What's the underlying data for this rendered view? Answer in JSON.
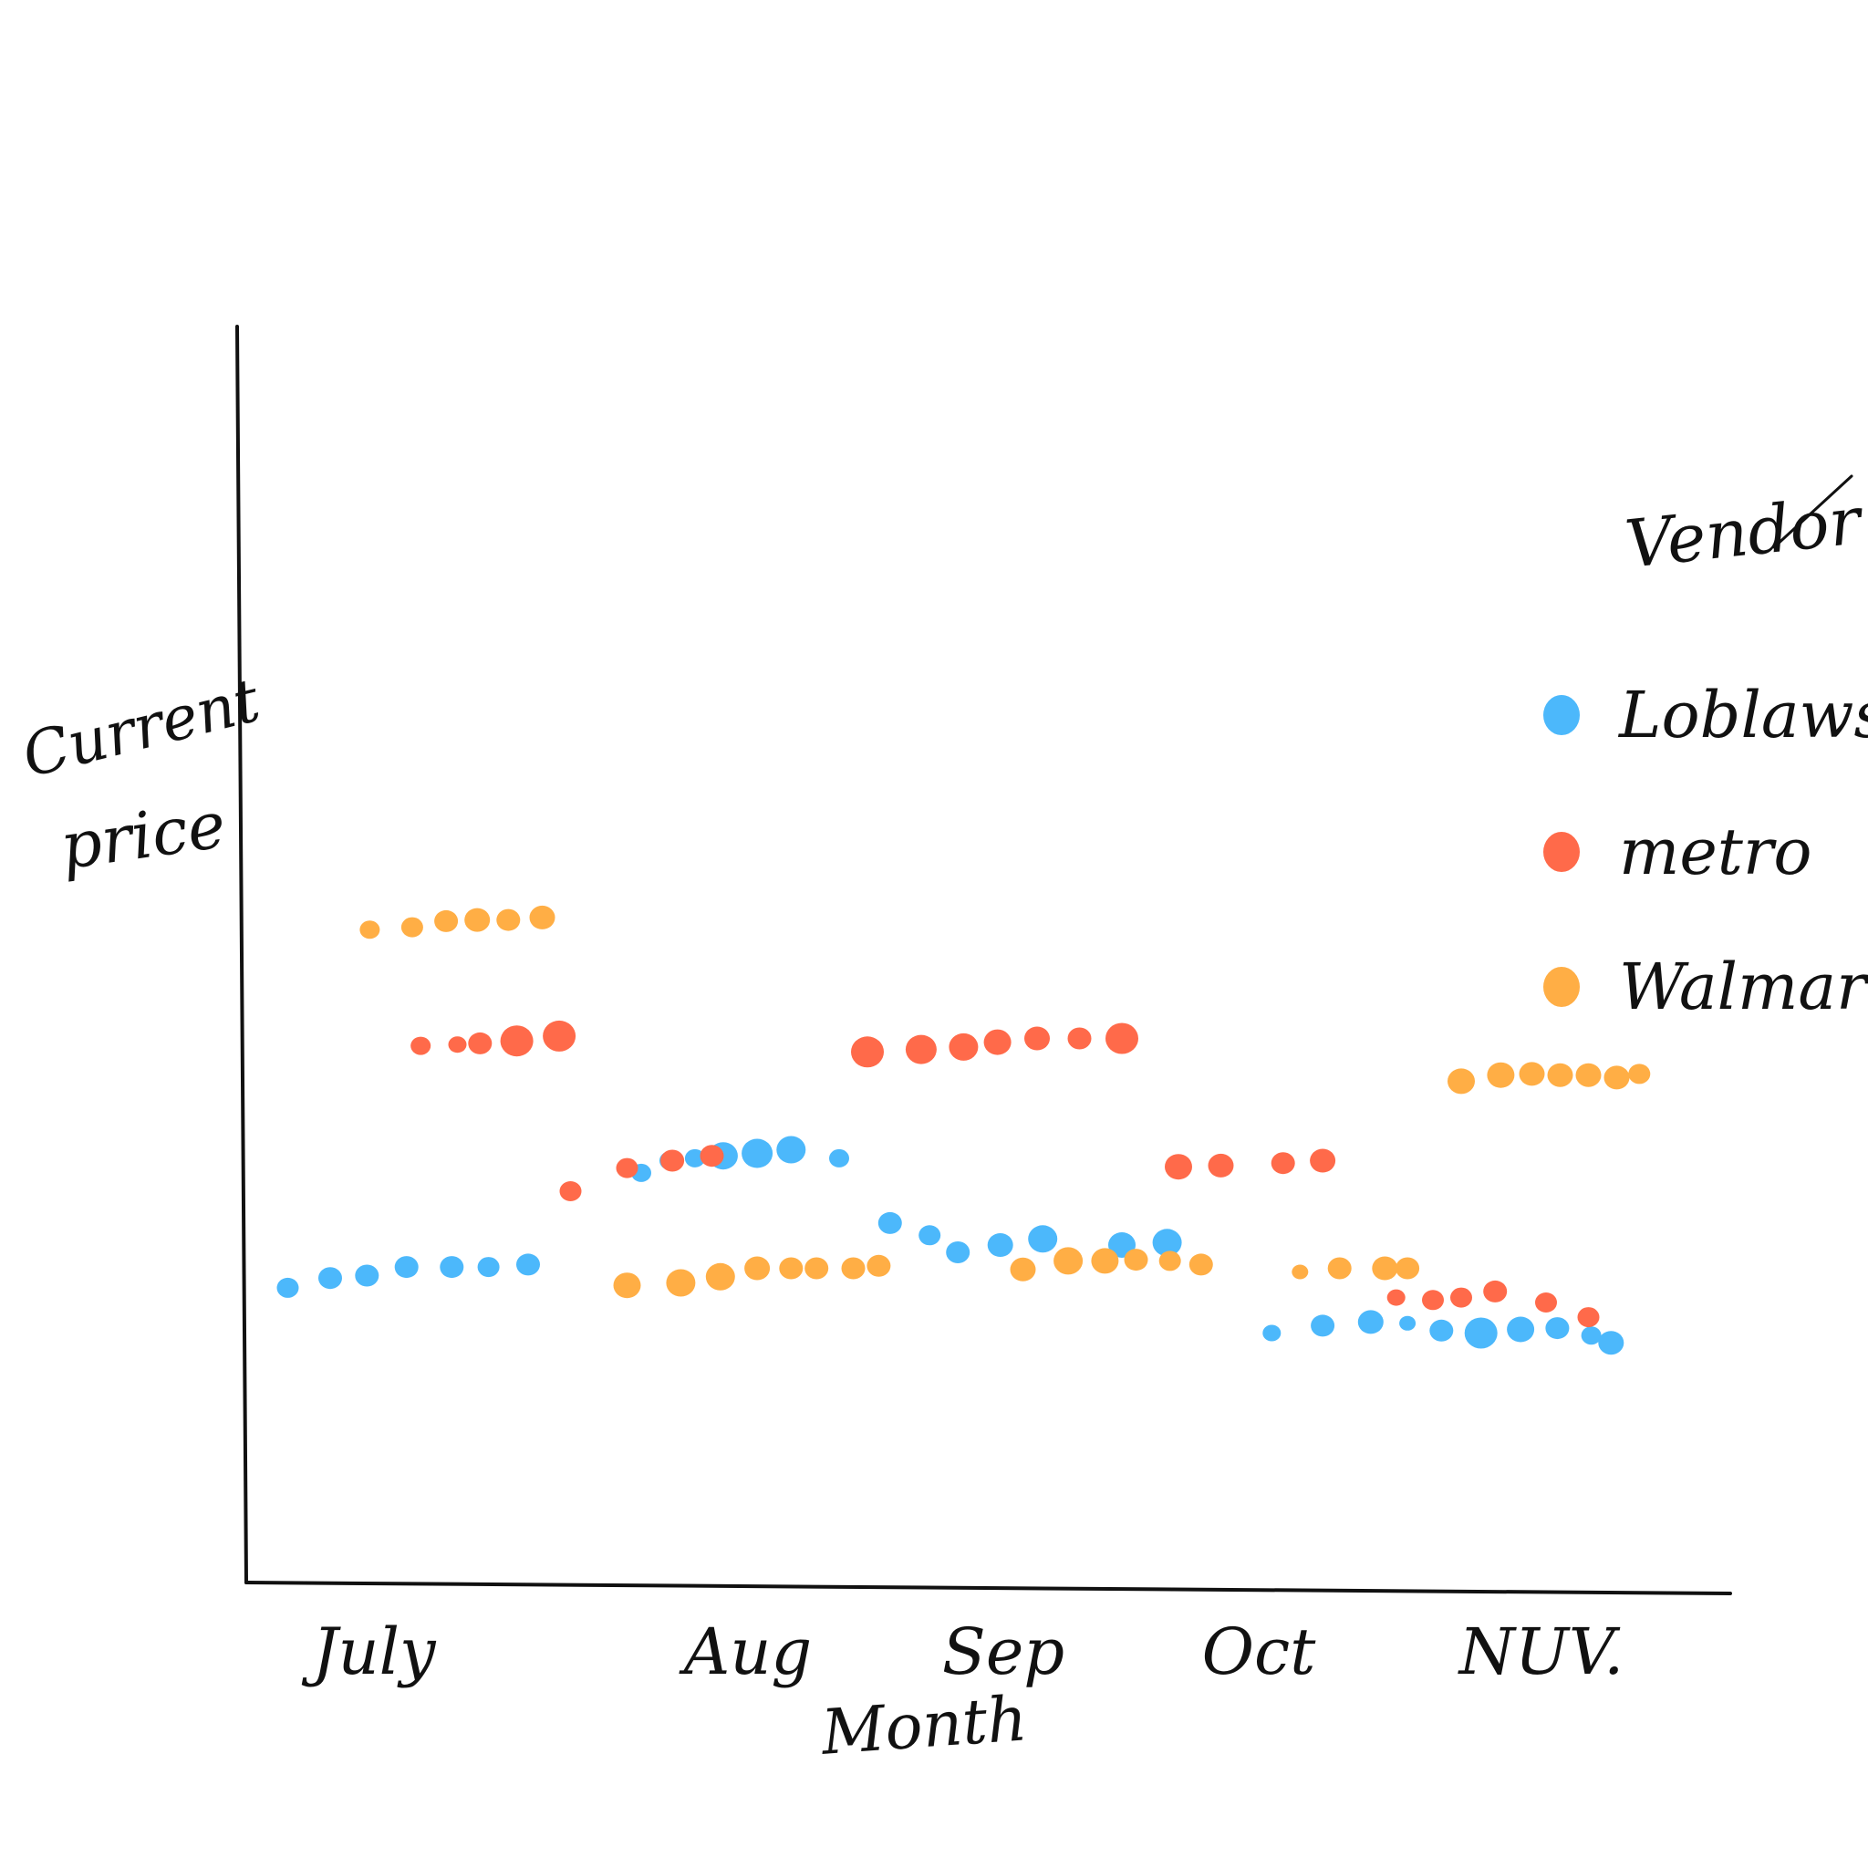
{
  "chart_data": {
    "type": "scatter",
    "xlabel": "Month",
    "ylabel_lines": [
      "Current",
      "price"
    ],
    "x_tick_labels": [
      "July",
      "Aug",
      "Sep",
      "Oct",
      "NUV."
    ],
    "legend_title": "Vendor",
    "legend_position": "right",
    "grid": false,
    "x_range": [
      0,
      5
    ],
    "y_range": [
      0,
      10
    ],
    "series": [
      {
        "name": "Loblaws",
        "color": "#4cb8fb",
        "points": [
          {
            "x": 0.05,
            "y": 2.15,
            "s": 11
          },
          {
            "x": 0.2,
            "y": 2.23,
            "s": 12
          },
          {
            "x": 0.33,
            "y": 2.25,
            "s": 12
          },
          {
            "x": 0.47,
            "y": 2.32,
            "s": 12
          },
          {
            "x": 0.63,
            "y": 2.32,
            "s": 12
          },
          {
            "x": 0.76,
            "y": 2.32,
            "s": 11
          },
          {
            "x": 0.9,
            "y": 2.34,
            "s": 12
          },
          {
            "x": 1.3,
            "y": 3.09,
            "s": 10
          },
          {
            "x": 1.4,
            "y": 3.19,
            "s": 10
          },
          {
            "x": 1.49,
            "y": 3.21,
            "s": 10
          },
          {
            "x": 1.59,
            "y": 3.23,
            "s": 15
          },
          {
            "x": 1.71,
            "y": 3.25,
            "s": 16
          },
          {
            "x": 1.83,
            "y": 3.28,
            "s": 15
          },
          {
            "x": 2.0,
            "y": 3.21,
            "s": 10
          },
          {
            "x": 2.18,
            "y": 2.68,
            "s": 12
          },
          {
            "x": 2.32,
            "y": 2.58,
            "s": 11
          },
          {
            "x": 2.42,
            "y": 2.44,
            "s": 12
          },
          {
            "x": 2.57,
            "y": 2.5,
            "s": 13
          },
          {
            "x": 2.72,
            "y": 2.55,
            "s": 15
          },
          {
            "x": 3.0,
            "y": 2.5,
            "s": 14
          },
          {
            "x": 3.16,
            "y": 2.52,
            "s": 15
          },
          {
            "x": 3.53,
            "y": 1.78,
            "s": 9
          },
          {
            "x": 3.71,
            "y": 1.84,
            "s": 12
          },
          {
            "x": 3.88,
            "y": 1.87,
            "s": 13
          },
          {
            "x": 4.01,
            "y": 1.86,
            "s": 8
          },
          {
            "x": 4.13,
            "y": 1.8,
            "s": 12
          },
          {
            "x": 4.27,
            "y": 1.78,
            "s": 17
          },
          {
            "x": 4.41,
            "y": 1.81,
            "s": 14
          },
          {
            "x": 4.54,
            "y": 1.82,
            "s": 12
          },
          {
            "x": 4.66,
            "y": 1.76,
            "s": 10
          },
          {
            "x": 4.73,
            "y": 1.7,
            "s": 13
          }
        ]
      },
      {
        "name": "metro",
        "color": "#ff6a4a",
        "points": [
          {
            "x": 0.52,
            "y": 4.13,
            "s": 10
          },
          {
            "x": 0.65,
            "y": 4.14,
            "s": 9
          },
          {
            "x": 0.73,
            "y": 4.15,
            "s": 12
          },
          {
            "x": 0.86,
            "y": 4.17,
            "s": 17
          },
          {
            "x": 1.01,
            "y": 4.21,
            "s": 17
          },
          {
            "x": 1.05,
            "y": 2.94,
            "s": 11
          },
          {
            "x": 1.25,
            "y": 3.13,
            "s": 11
          },
          {
            "x": 1.41,
            "y": 3.19,
            "s": 12
          },
          {
            "x": 1.55,
            "y": 3.23,
            "s": 12
          },
          {
            "x": 2.1,
            "y": 4.08,
            "s": 17
          },
          {
            "x": 2.29,
            "y": 4.1,
            "s": 16
          },
          {
            "x": 2.44,
            "y": 4.12,
            "s": 15
          },
          {
            "x": 2.56,
            "y": 4.16,
            "s": 14
          },
          {
            "x": 2.7,
            "y": 4.19,
            "s": 13
          },
          {
            "x": 2.85,
            "y": 4.19,
            "s": 12
          },
          {
            "x": 3.0,
            "y": 4.19,
            "s": 17
          },
          {
            "x": 3.2,
            "y": 3.14,
            "s": 14
          },
          {
            "x": 3.35,
            "y": 3.15,
            "s": 13
          },
          {
            "x": 3.57,
            "y": 3.17,
            "s": 12
          },
          {
            "x": 3.71,
            "y": 3.19,
            "s": 13
          },
          {
            "x": 3.97,
            "y": 2.07,
            "s": 9
          },
          {
            "x": 4.1,
            "y": 2.05,
            "s": 11
          },
          {
            "x": 4.2,
            "y": 2.07,
            "s": 11
          },
          {
            "x": 4.32,
            "y": 2.12,
            "s": 12
          },
          {
            "x": 4.5,
            "y": 2.03,
            "s": 11
          },
          {
            "x": 4.65,
            "y": 1.91,
            "s": 11
          }
        ]
      },
      {
        "name": "Walmart",
        "color": "#ffae45",
        "points": [
          {
            "x": 0.34,
            "y": 5.08,
            "s": 10
          },
          {
            "x": 0.49,
            "y": 5.1,
            "s": 11
          },
          {
            "x": 0.61,
            "y": 5.15,
            "s": 12
          },
          {
            "x": 0.72,
            "y": 5.16,
            "s": 13
          },
          {
            "x": 0.83,
            "y": 5.16,
            "s": 12
          },
          {
            "x": 0.95,
            "y": 5.18,
            "s": 13
          },
          {
            "x": 1.25,
            "y": 2.17,
            "s": 14
          },
          {
            "x": 1.44,
            "y": 2.19,
            "s": 15
          },
          {
            "x": 1.58,
            "y": 2.24,
            "s": 15
          },
          {
            "x": 1.71,
            "y": 2.31,
            "s": 13
          },
          {
            "x": 1.83,
            "y": 2.31,
            "s": 12
          },
          {
            "x": 1.92,
            "y": 2.31,
            "s": 12
          },
          {
            "x": 2.05,
            "y": 2.31,
            "s": 12
          },
          {
            "x": 2.14,
            "y": 2.33,
            "s": 12
          },
          {
            "x": 2.65,
            "y": 2.3,
            "s": 13
          },
          {
            "x": 2.81,
            "y": 2.37,
            "s": 15
          },
          {
            "x": 2.94,
            "y": 2.37,
            "s": 14
          },
          {
            "x": 3.05,
            "y": 2.38,
            "s": 12
          },
          {
            "x": 3.17,
            "y": 2.37,
            "s": 11
          },
          {
            "x": 3.28,
            "y": 2.34,
            "s": 12
          },
          {
            "x": 3.63,
            "y": 2.28,
            "s": 8
          },
          {
            "x": 3.77,
            "y": 2.31,
            "s": 12
          },
          {
            "x": 3.93,
            "y": 2.31,
            "s": 13
          },
          {
            "x": 4.01,
            "y": 2.31,
            "s": 12
          },
          {
            "x": 4.2,
            "y": 3.84,
            "s": 14
          },
          {
            "x": 4.34,
            "y": 3.89,
            "s": 14
          },
          {
            "x": 4.45,
            "y": 3.9,
            "s": 13
          },
          {
            "x": 4.55,
            "y": 3.89,
            "s": 13
          },
          {
            "x": 4.65,
            "y": 3.89,
            "s": 13
          },
          {
            "x": 4.75,
            "y": 3.87,
            "s": 13
          },
          {
            "x": 4.83,
            "y": 3.9,
            "s": 11
          }
        ]
      }
    ]
  }
}
